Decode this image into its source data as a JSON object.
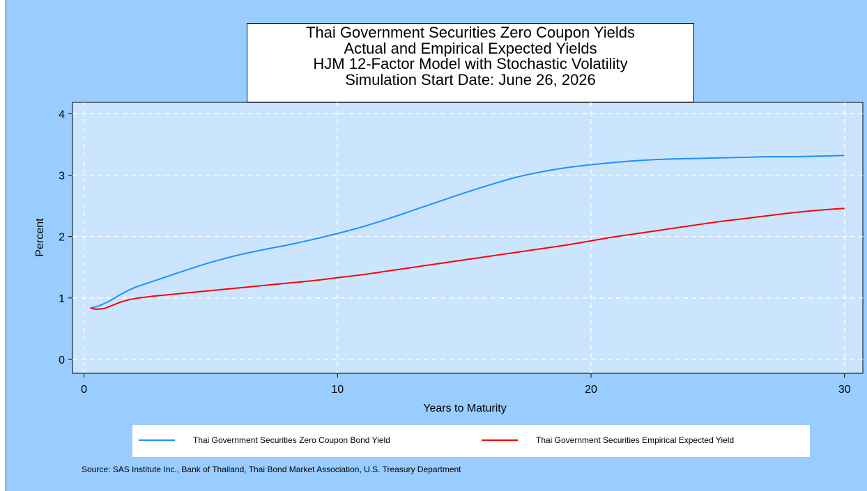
{
  "title_lines": [
    "Thai Government Securities Zero Coupon Yields",
    "Actual and Empirical Expected Yields",
    "HJM 12-Factor Model with Stochastic Volatility",
    "Simulation Start Date: June 26, 2026"
  ],
  "source": "Source: SAS Institute Inc., Bank of Thailand, Thai Bond Market Association, U.S. Treasury Department",
  "chart_data": {
    "type": "line",
    "xlabel": "Years to Maturity",
    "ylabel": "Percent",
    "xlim": [
      0,
      30
    ],
    "ylim": [
      0,
      4
    ],
    "xticks": [
      0,
      10,
      20,
      30
    ],
    "yticks": [
      0,
      1,
      2,
      3,
      4
    ],
    "grid": true,
    "legend_position": "bottom",
    "series": [
      {
        "name": "Thai Government Securities Zero Coupon Bond Yield",
        "color": "#1e90ff",
        "x": [
          0.25,
          0.5,
          1,
          1.5,
          2,
          3,
          4,
          5,
          6,
          7,
          8,
          9,
          10,
          11,
          12,
          13,
          14,
          15,
          16,
          17,
          18,
          19,
          20,
          21,
          22,
          23,
          24,
          25,
          26,
          27,
          28,
          29,
          30
        ],
        "y": [
          0.84,
          0.86,
          0.95,
          1.07,
          1.17,
          1.31,
          1.45,
          1.58,
          1.69,
          1.78,
          1.86,
          1.95,
          2.05,
          2.16,
          2.29,
          2.43,
          2.57,
          2.71,
          2.84,
          2.96,
          3.05,
          3.12,
          3.17,
          3.21,
          3.24,
          3.26,
          3.27,
          3.28,
          3.29,
          3.3,
          3.3,
          3.31,
          3.32
        ]
      },
      {
        "name": "Thai Government Securities Empirical Expected Yield",
        "color": "#ff0000",
        "x": [
          0.25,
          0.4,
          0.6,
          0.8,
          1,
          1.5,
          2,
          3,
          4,
          5,
          6,
          7,
          8,
          9,
          10,
          11,
          12,
          13,
          14,
          15,
          16,
          17,
          18,
          19,
          20,
          21,
          22,
          23,
          24,
          25,
          26,
          27,
          28,
          29,
          30
        ],
        "y": [
          0.84,
          0.82,
          0.82,
          0.83,
          0.86,
          0.94,
          0.99,
          1.04,
          1.08,
          1.12,
          1.16,
          1.2,
          1.24,
          1.28,
          1.33,
          1.38,
          1.44,
          1.5,
          1.56,
          1.62,
          1.68,
          1.74,
          1.8,
          1.86,
          1.93,
          2.0,
          2.06,
          2.12,
          2.18,
          2.24,
          2.29,
          2.34,
          2.39,
          2.43,
          2.46
        ]
      }
    ]
  }
}
